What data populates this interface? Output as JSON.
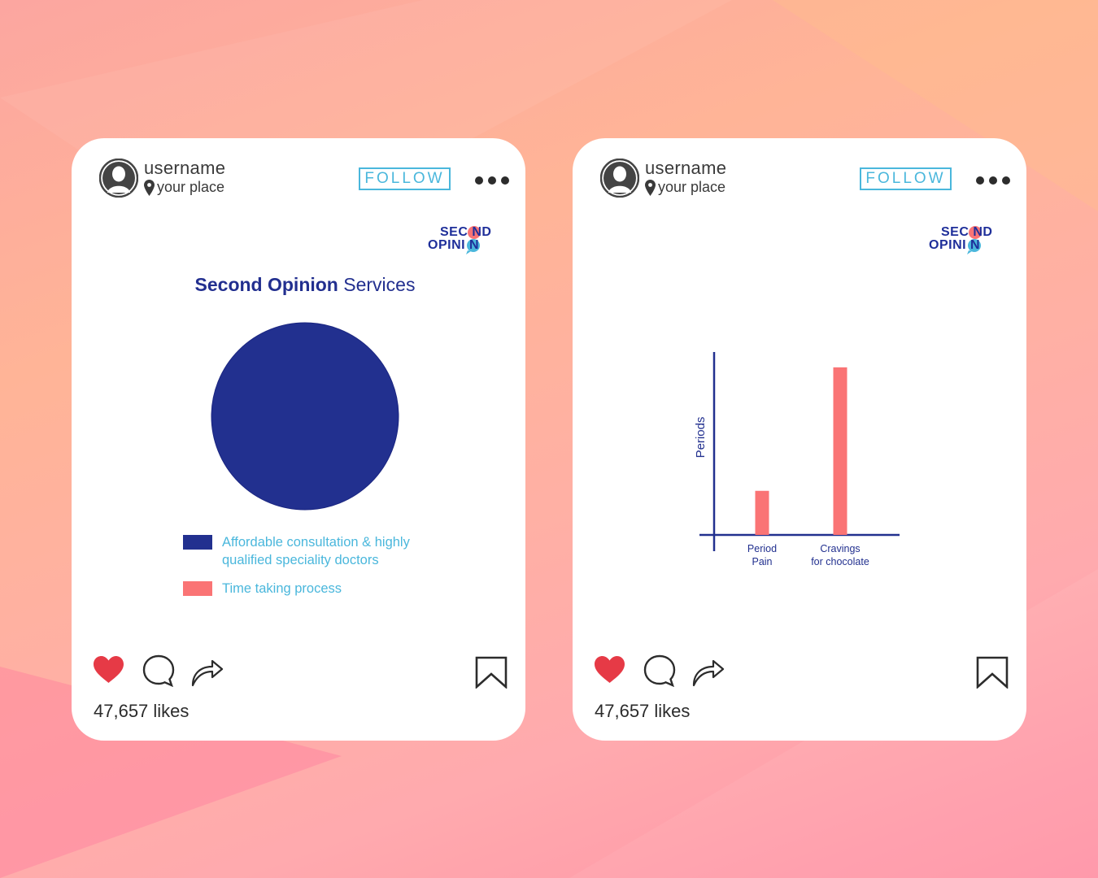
{
  "posts": [
    {
      "username": "username",
      "place": "your place",
      "follow_label": "FOLLOW",
      "logo": {
        "line1": "SEC ND",
        "line2": "OPINI N"
      },
      "title_bold": "Second Opinion",
      "title_light": "Services",
      "likes": "47,657 likes"
    },
    {
      "username": "username",
      "place": "your place",
      "follow_label": "FOLLOW",
      "logo": {
        "line1": "SEC ND",
        "line2": "OPINI N"
      },
      "likes": "47,657 likes"
    }
  ],
  "colors": {
    "navy": "#22308f",
    "coral": "#fa7475",
    "accent_blue": "#4ab7dc",
    "heart_red": "#e63a46"
  },
  "icons": [
    "user-avatar-icon",
    "location-pin-icon",
    "more-options-icon",
    "heart-icon",
    "comment-icon",
    "share-icon",
    "bookmark-icon"
  ],
  "chart_data": [
    {
      "type": "pie",
      "title": "Second Opinion Services",
      "categories": [
        "Affordable consultation & highly qualified speciality doctors",
        "Time taking process"
      ],
      "values": [
        100,
        0
      ],
      "colors": [
        "#22308f",
        "#fa7475"
      ],
      "legend_position": "bottom"
    },
    {
      "type": "bar",
      "categories": [
        "Period Pain",
        "Cravings for chocolate"
      ],
      "category_labels": [
        [
          "Period",
          "Pain"
        ],
        [
          "Cravings",
          "for chocolate"
        ]
      ],
      "values": [
        25,
        95
      ],
      "ylabel": "Periods",
      "xlabel": "",
      "ylim": [
        0,
        100
      ],
      "color": "#fa7475",
      "grid": false
    }
  ]
}
